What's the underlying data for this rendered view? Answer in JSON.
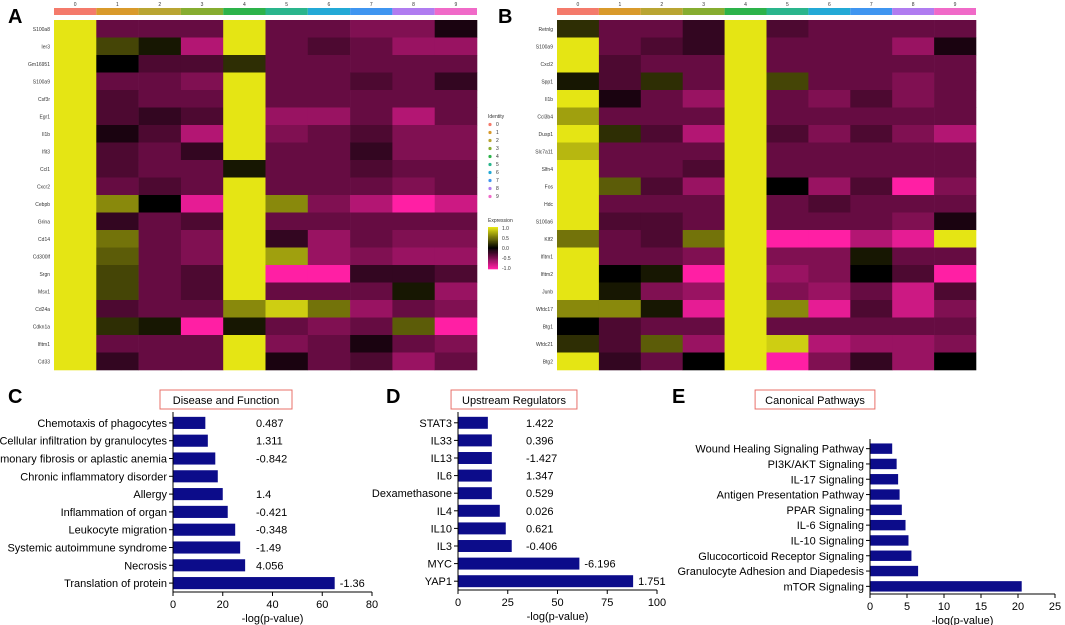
{
  "panels": {
    "A": "A",
    "B": "B",
    "C": "C",
    "D": "D",
    "E": "E"
  },
  "cluster_colors": [
    "#f47a6b",
    "#d99a2b",
    "#b9a532",
    "#86ad30",
    "#2db34a",
    "#2ab58c",
    "#23a9d6",
    "#3f95f0",
    "#b07cf0",
    "#f06ac8"
  ],
  "heatmap_colors": {
    "high": "#e5e514",
    "mid": "#000000",
    "low": "#ff1fa4"
  },
  "legend": {
    "identity_title": "Identity",
    "identity_items": [
      "0",
      "1",
      "2",
      "3",
      "4",
      "5",
      "6",
      "7",
      "8",
      "9"
    ],
    "expression_title": "Expression",
    "expression_ticks": [
      "1.0",
      "0.5",
      "0.0",
      "-0.5",
      "-1.0"
    ]
  },
  "chart_data": [
    {
      "type": "heatmap",
      "panel": "A",
      "clusters": [
        "0",
        "1",
        "2",
        "3",
        "4",
        "5",
        "6",
        "7",
        "8",
        "9"
      ],
      "genes": [
        "S100a8",
        "Ier3",
        "Gm16951",
        "S100a9",
        "Csf3r",
        "Egr1",
        "Il1b",
        "Ifit3",
        "Ccl1",
        "Cxcr2",
        "Cebpb",
        "Grina",
        "Cd14",
        "Cd300lf",
        "Srgn",
        "Msx1",
        "Cd24a",
        "Cdkn1a",
        "Ifitm1",
        "Cd33"
      ],
      "values": [
        [
          1.0,
          -0.4,
          -0.4,
          -0.4,
          1.0,
          -0.4,
          -0.4,
          -0.5,
          -0.5,
          -0.1
        ],
        [
          1.0,
          0.3,
          0.1,
          -0.7,
          1.0,
          -0.4,
          -0.3,
          -0.4,
          -0.6,
          -0.6
        ],
        [
          1.0,
          0.0,
          -0.3,
          -0.3,
          0.2,
          -0.4,
          -0.4,
          -0.4,
          -0.4,
          -0.4
        ],
        [
          1.0,
          -0.4,
          -0.4,
          -0.5,
          1.0,
          -0.4,
          -0.4,
          -0.3,
          -0.4,
          -0.2
        ],
        [
          1.0,
          -0.3,
          -0.4,
          -0.4,
          1.0,
          -0.4,
          -0.4,
          -0.4,
          -0.4,
          -0.4
        ],
        [
          1.0,
          -0.3,
          -0.2,
          -0.3,
          1.0,
          -0.6,
          -0.6,
          -0.4,
          -0.7,
          -0.4
        ],
        [
          1.0,
          -0.1,
          -0.3,
          -0.7,
          1.0,
          -0.5,
          -0.4,
          -0.3,
          -0.5,
          -0.5
        ],
        [
          1.0,
          -0.3,
          -0.4,
          -0.2,
          1.0,
          -0.4,
          -0.4,
          -0.2,
          -0.5,
          -0.5
        ],
        [
          1.0,
          -0.3,
          -0.4,
          -0.4,
          0.1,
          -0.4,
          -0.4,
          -0.3,
          -0.4,
          -0.4
        ],
        [
          1.0,
          -0.4,
          -0.3,
          -0.4,
          1.0,
          -0.4,
          -0.4,
          -0.4,
          -0.5,
          -0.4
        ],
        [
          1.0,
          0.6,
          0.0,
          -0.9,
          1.0,
          0.6,
          -0.5,
          -0.7,
          -1.0,
          -0.8
        ],
        [
          1.0,
          -0.2,
          -0.4,
          -0.3,
          1.0,
          -0.4,
          -0.4,
          -0.4,
          -0.4,
          -0.4
        ],
        [
          1.0,
          0.5,
          -0.4,
          -0.5,
          1.0,
          -0.2,
          -0.6,
          -0.4,
          -0.5,
          -0.5
        ],
        [
          1.0,
          0.4,
          -0.4,
          -0.5,
          1.0,
          0.7,
          -0.6,
          -0.5,
          -0.6,
          -0.6
        ],
        [
          1.0,
          0.3,
          -0.4,
          -0.3,
          1.0,
          -1.0,
          -1.0,
          -0.2,
          -0.2,
          -0.3
        ],
        [
          1.0,
          0.3,
          -0.4,
          -0.3,
          1.0,
          -0.4,
          -0.4,
          -0.4,
          0.1,
          -0.6
        ],
        [
          1.0,
          -0.3,
          -0.4,
          -0.4,
          0.6,
          0.9,
          0.5,
          -0.6,
          -0.4,
          -0.5
        ],
        [
          1.0,
          0.2,
          0.1,
          -1.0,
          0.1,
          -0.4,
          -0.5,
          -0.4,
          0.4,
          -1.0
        ],
        [
          1.0,
          -0.4,
          -0.4,
          -0.4,
          1.0,
          -0.5,
          -0.4,
          -0.1,
          -0.4,
          -0.5
        ],
        [
          1.0,
          -0.2,
          -0.4,
          -0.4,
          1.0,
          -0.1,
          -0.4,
          -0.3,
          -0.6,
          -0.4
        ]
      ]
    },
    {
      "type": "heatmap",
      "panel": "B",
      "clusters": [
        "0",
        "1",
        "2",
        "3",
        "4",
        "5",
        "6",
        "7",
        "8",
        "9"
      ],
      "genes": [
        "Retnlg",
        "S100a9",
        "Cxcl2",
        "Spp1",
        "Il1b",
        "Ccl3b4",
        "Dusp1",
        "Slc7a11",
        "Slfn4",
        "Fos",
        "Hdc",
        "S100a6",
        "Klf2",
        "Ifitm1",
        "Ifitm2",
        "Junb",
        "Wfdc17",
        "Btg1",
        "Wfdc21",
        "Btg2"
      ],
      "values": [
        [
          0.2,
          -0.4,
          -0.4,
          -0.2,
          1.0,
          -0.3,
          -0.4,
          -0.4,
          -0.4,
          -0.4
        ],
        [
          1.0,
          -0.4,
          -0.3,
          -0.2,
          1.0,
          -0.4,
          -0.4,
          -0.4,
          -0.6,
          -0.1
        ],
        [
          1.0,
          -0.3,
          -0.4,
          -0.4,
          1.0,
          -0.4,
          -0.4,
          -0.4,
          -0.4,
          -0.4
        ],
        [
          0.1,
          -0.3,
          0.2,
          -0.4,
          1.0,
          0.3,
          -0.4,
          -0.4,
          -0.5,
          -0.4
        ],
        [
          1.0,
          -0.1,
          -0.4,
          -0.6,
          1.0,
          -0.4,
          -0.5,
          -0.3,
          -0.5,
          -0.4
        ],
        [
          0.7,
          -0.4,
          -0.4,
          -0.4,
          1.0,
          -0.4,
          -0.4,
          -0.4,
          -0.4,
          -0.4
        ],
        [
          1.0,
          0.2,
          -0.3,
          -0.7,
          1.0,
          -0.3,
          -0.5,
          -0.3,
          -0.5,
          -0.7
        ],
        [
          0.8,
          -0.4,
          -0.4,
          -0.4,
          1.0,
          -0.4,
          -0.4,
          -0.4,
          -0.4,
          -0.4
        ],
        [
          1.0,
          -0.4,
          -0.4,
          -0.3,
          1.0,
          -0.4,
          -0.4,
          -0.4,
          -0.4,
          -0.4
        ],
        [
          1.0,
          0.4,
          -0.3,
          -0.6,
          1.0,
          0.0,
          -0.6,
          -0.3,
          -1.0,
          -0.5
        ],
        [
          1.0,
          -0.4,
          -0.4,
          -0.4,
          1.0,
          -0.4,
          -0.3,
          -0.4,
          -0.4,
          -0.4
        ],
        [
          1.0,
          -0.3,
          -0.3,
          -0.4,
          1.0,
          -0.4,
          -0.4,
          -0.4,
          -0.5,
          -0.1
        ],
        [
          0.5,
          -0.4,
          -0.3,
          0.5,
          1.0,
          -1.0,
          -1.0,
          -0.7,
          -0.9,
          1.0
        ],
        [
          1.0,
          -0.4,
          -0.4,
          -0.5,
          1.0,
          -0.5,
          -0.5,
          0.1,
          -0.4,
          -0.4
        ],
        [
          1.0,
          0.0,
          0.1,
          -1.0,
          1.0,
          -0.6,
          -0.5,
          0.0,
          -0.3,
          -1.0
        ],
        [
          1.0,
          0.1,
          -0.5,
          -0.6,
          1.0,
          -0.5,
          -0.6,
          -0.4,
          -0.8,
          -0.3
        ],
        [
          0.6,
          0.6,
          0.1,
          -0.9,
          1.0,
          0.6,
          -0.9,
          -0.3,
          -0.8,
          -0.5
        ],
        [
          0.0,
          -0.3,
          -0.4,
          -0.4,
          1.0,
          -0.4,
          -0.4,
          -0.4,
          -0.4,
          -0.4
        ],
        [
          0.2,
          -0.3,
          0.4,
          -0.6,
          1.0,
          0.9,
          -0.7,
          -0.6,
          -0.6,
          -0.5
        ],
        [
          1.0,
          -0.2,
          -0.4,
          0.0,
          1.0,
          -1.0,
          -0.5,
          -0.2,
          -0.6,
          0.0
        ]
      ]
    },
    {
      "type": "bar",
      "panel": "C",
      "title": "Disease and Function",
      "xlabel": "-log(p-value)",
      "xlim": [
        0,
        80
      ],
      "xticks": [
        "0",
        "20",
        "40",
        "60",
        "80"
      ],
      "categories": [
        "Chemotaxis of phagocytes",
        "Cellular infiltration by granulocytes",
        "Pulmonary fibrosis or aplastic anemia",
        "Chronic inflammatory disorder",
        "Allergy",
        "Inflammation of organ",
        "Leukocyte migration",
        "Systemic autoimmune syndrome",
        "Necrosis",
        "Translation of protein"
      ],
      "values": [
        13,
        14,
        17,
        18,
        20,
        22,
        25,
        27,
        29,
        65
      ],
      "zscores": [
        "0.487",
        "1.311",
        "-0.842",
        "",
        "1.4",
        "-0.421",
        "-0.348",
        "-1.49",
        "4.056",
        "-1.36"
      ],
      "bar_color": "#0c0c8a"
    },
    {
      "type": "bar",
      "panel": "D",
      "title": "Upstream Regulators",
      "xlabel": "-log(p-value)",
      "xlim": [
        0,
        100
      ],
      "xticks": [
        "0",
        "25",
        "50",
        "75",
        "100"
      ],
      "categories": [
        "STAT3",
        "IL33",
        "IL13",
        "IL6",
        "Dexamethasone",
        "IL4",
        "IL10",
        "IL3",
        "MYC",
        "YAP1"
      ],
      "values": [
        15,
        17,
        17,
        17,
        17,
        21,
        24,
        27,
        61,
        88
      ],
      "zscores": [
        "1.422",
        "0.396",
        "-1.427",
        "1.347",
        "0.529",
        "0.026",
        "0.621",
        "-0.406",
        "-6.196",
        "1.751"
      ],
      "bar_color": "#0c0c8a"
    },
    {
      "type": "bar",
      "panel": "E",
      "title": "Canonical Pathways",
      "xlabel": "-log(p-value)",
      "xlim": [
        0,
        25
      ],
      "xticks": [
        "0",
        "5",
        "10",
        "15",
        "20",
        "25"
      ],
      "categories": [
        "Wound Healing Signaling Pathway",
        "PI3K/AKT Signaling",
        "IL-17 Signaling",
        "Antigen Presentation Pathway",
        "PPAR Signaling",
        "IL-6 Signaling",
        "IL-10 Signaling",
        "Glucocorticoid Receptor Signaling",
        "Granulocyte Adhesion and Diapedesis",
        "mTOR Signaling"
      ],
      "values": [
        3.0,
        3.6,
        3.8,
        4.0,
        4.3,
        4.8,
        5.2,
        5.6,
        6.5,
        20.5
      ],
      "zscores": [],
      "bar_color": "#0c0c8a"
    }
  ]
}
